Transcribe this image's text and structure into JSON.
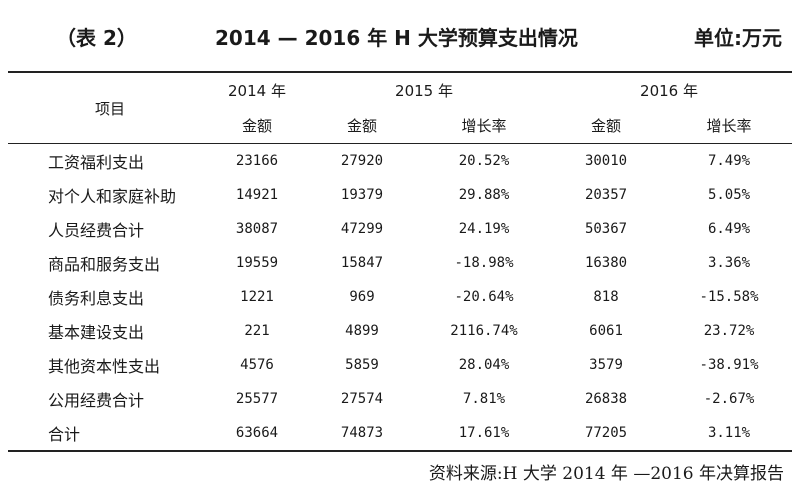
{
  "header": {
    "tab_label": "（表 2）",
    "title": "2014 — 2016 年 H 大学预算支出情况",
    "unit": "单位:万元"
  },
  "table": {
    "col_item": "项目",
    "years": [
      "2014 年",
      "2015 年",
      "2016 年"
    ],
    "sub": {
      "amount": "金额",
      "growth": "增长率"
    },
    "rows": [
      {
        "item": "工资福利支出",
        "a2014": "23166",
        "a2015": "27920",
        "g2015": "20.52%",
        "a2016": "30010",
        "g2016": "7.49%"
      },
      {
        "item": "对个人和家庭补助",
        "a2014": "14921",
        "a2015": "19379",
        "g2015": "29.88%",
        "a2016": "20357",
        "g2016": "5.05%"
      },
      {
        "item": "人员经费合计",
        "a2014": "38087",
        "a2015": "47299",
        "g2015": "24.19%",
        "a2016": "50367",
        "g2016": "6.49%"
      },
      {
        "item": "商品和服务支出",
        "a2014": "19559",
        "a2015": "15847",
        "g2015": "-18.98%",
        "a2016": "16380",
        "g2016": "3.36%"
      },
      {
        "item": "债务利息支出",
        "a2014": "1221",
        "a2015": "969",
        "g2015": "-20.64%",
        "a2016": "818",
        "g2016": "-15.58%"
      },
      {
        "item": "基本建设支出",
        "a2014": "221",
        "a2015": "4899",
        "g2015": "2116.74%",
        "a2016": "6061",
        "g2016": "23.72%"
      },
      {
        "item": "其他资本性支出",
        "a2014": "4576",
        "a2015": "5859",
        "g2015": "28.04%",
        "a2016": "3579",
        "g2016": "-38.91%"
      },
      {
        "item": "公用经费合计",
        "a2014": "25577",
        "a2015": "27574",
        "g2015": "7.81%",
        "a2016": "26838",
        "g2016": "-2.67%"
      },
      {
        "item": "合计",
        "a2014": "63664",
        "a2015": "74873",
        "g2015": "17.61%",
        "a2016": "77205",
        "g2016": "3.11%"
      }
    ]
  },
  "source": "资料来源:H 大学 2014 年 —2016 年决算报告"
}
